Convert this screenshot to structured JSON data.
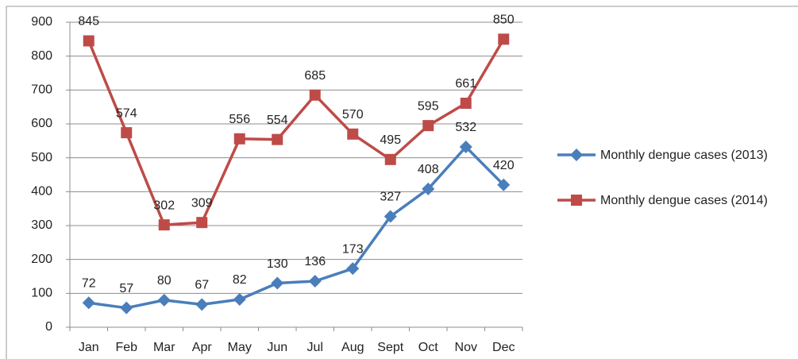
{
  "chart_data": {
    "type": "line",
    "categories": [
      "Jan",
      "Feb",
      "Mar",
      "Apr",
      "May",
      "Jun",
      "Jul",
      "Aug",
      "Sept",
      "Oct",
      "Nov",
      "Dec"
    ],
    "series": [
      {
        "name": "Monthly dengue cases (2013)",
        "color": "#4a7ebb",
        "marker": "diamond",
        "values": [
          72,
          57,
          80,
          67,
          82,
          130,
          136,
          173,
          327,
          408,
          532,
          420
        ]
      },
      {
        "name": "Monthly dengue cases (2014)",
        "color": "#be4b48",
        "marker": "square",
        "values": [
          845,
          574,
          302,
          309,
          556,
          554,
          685,
          570,
          495,
          595,
          661,
          850
        ]
      }
    ],
    "ylim": [
      0,
      900
    ],
    "yticks": [
      0,
      100,
      200,
      300,
      400,
      500,
      600,
      700,
      800,
      900
    ],
    "grid": true,
    "legend": "right"
  }
}
